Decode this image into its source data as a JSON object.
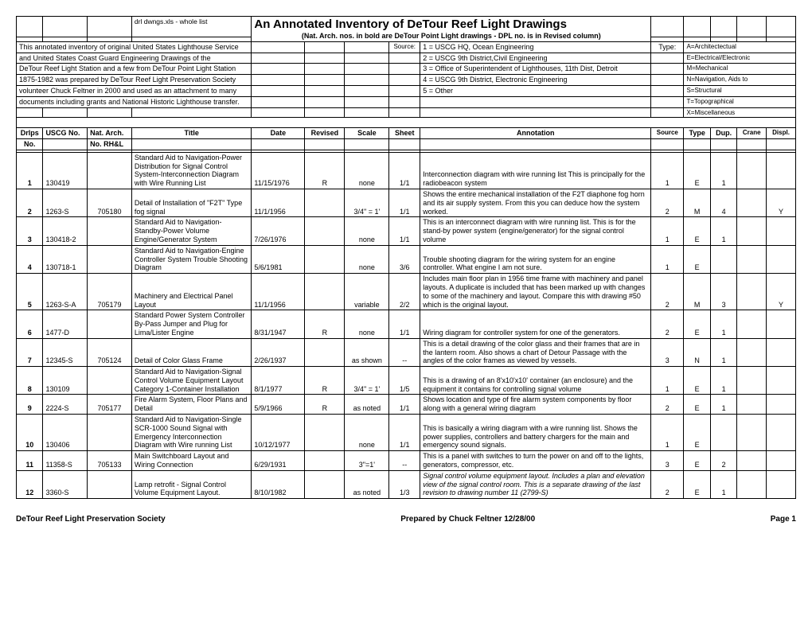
{
  "header": {
    "file_label": "drl dwngs.xls - whole list",
    "main_title": "An Annotated Inventory of DeTour Reef Light Drawings",
    "sub_title": "(Nat. Arch. nos. in bold are DeTour Point Light drawings - DPL no. is in Revised column)",
    "intro_l1": "This annotated  inventory of original United States Lighthouse Service",
    "intro_l2": "and United States Coast Guard Engineering Drawings of the",
    "intro_l3": " DeTour Reef Light Station  and a few from DeTour Point Light Station",
    "intro_l4": "1875-1982 was prepared by DeTour Reef Light Preservation Society",
    "intro_l5": "volunteer Chuck Feltner in 2000 and used as an attachment to many",
    "intro_l6": "documents including grants and National Historic Lighthouse transfer.",
    "source_label": "Source:",
    "source_1": "1 = USCG HQ, Ocean Engineering",
    "source_2": "2 = USCG 9th District,Civil Engineering",
    "source_3": "3 = Office of Superintendent of Lighthouses, 11th Dist, Detroit",
    "source_4": "4 = USCG 9th District, Electronic Engineering",
    "source_5": "5 = Other",
    "type_label": "Type:",
    "type_a": "A=Architectectual",
    "type_e": "E=Electrical/Electronic",
    "type_m": "M=Mechanical",
    "type_n": "N=Navigation, Aids to",
    "type_s": "S=Structural",
    "type_t": "T=Topographical",
    "type_x": "X=Miscellaneous"
  },
  "columns": {
    "c0": "Drlps No.",
    "c1": "USCG No.",
    "c2": "Nat. Arch.",
    "c2b": "No. RH&L",
    "c3": "Title",
    "c4": "Date",
    "c5": "Revised",
    "c6": "Scale",
    "c7": "Sheet",
    "c8": "Annotation",
    "c9": "Source",
    "c10": "Type",
    "c11": "Dup.",
    "c12": "Crane",
    "c13": "Displ."
  },
  "rows": [
    {
      "no": "1",
      "uscg": "130419",
      "nat": "",
      "title": "Standard Aid to Navigation-Power Distribution for Signal Control System-Interconnection Diagram with Wire Running List",
      "date": "11/15/1976",
      "rev": "R",
      "scale": "none",
      "sheet": "1/1",
      "anno": "Interconnection diagram with wire running list  This is principally for the radiobeacon system",
      "src": "1",
      "type": "E",
      "dup": "1",
      "crane": "",
      "displ": ""
    },
    {
      "no": "2",
      "uscg": "1263-S",
      "nat": "705180",
      "title": "Detail of Installation of \"F2T\" Type fog signal",
      "date": "11/1/1956",
      "rev": "",
      "scale": "3/4\" = 1'",
      "sheet": "1/1",
      "anno": "Shows the entire mechanical installation of the F2T diaphone fog horn and its air supply system.  From this you can deduce how the system worked.",
      "src": "2",
      "type": "M",
      "dup": "4",
      "crane": "",
      "displ": "Y"
    },
    {
      "no": "3",
      "uscg": "130418-2",
      "nat": "",
      "title": "Standard Aid to Navigation-Standby-Power Volume Engine/Generator System",
      "date": "7/26/1976",
      "rev": "",
      "scale": "none",
      "sheet": "1/1",
      "anno": "This is an interconnect diagram with wire running list.  This is for the stand-by power system (engine/generator) for the signal control volume",
      "src": "1",
      "type": "E",
      "dup": "1",
      "crane": "",
      "displ": ""
    },
    {
      "no": "4",
      "uscg": "130718-1",
      "nat": "",
      "title": "Standard Aid to Navigation-Engine Controller System Trouble Shooting Diagram",
      "date": "5/6/1981",
      "rev": "",
      "scale": "none",
      "sheet": "3/6",
      "anno": "Trouble shooting diagram for the wiring system for an engine controller.  What engine I am not sure.",
      "src": "1",
      "type": "E",
      "dup": "",
      "crane": "",
      "displ": ""
    },
    {
      "no": "5",
      "uscg": "1263-S-A",
      "nat": "705179",
      "title": "Machinery and Electrical Panel Layout",
      "date": "11/1/1956",
      "rev": "",
      "scale": "variable",
      "sheet": "2/2",
      "anno": "Includes main floor plan in 1956 time frame with machinery and panel layouts.  A duplicate is included that has been marked up with changes to some of the machinery and layout.  Compare this with drawing #50 which is the original layout.",
      "src": "2",
      "type": "M",
      "dup": "3",
      "crane": "",
      "displ": "Y"
    },
    {
      "no": "6",
      "uscg": "1477-D",
      "nat": "",
      "title": "Standard Power System Controller By-Pass Jumper and Plug for Lima/Lister Engine",
      "date": "8/31/1947",
      "rev": "R",
      "scale": "none",
      "sheet": "1/1",
      "anno": "Wiring diagram for controller system for one of the generators.",
      "src": "2",
      "type": "E",
      "dup": "1",
      "crane": "",
      "displ": ""
    },
    {
      "no": "7",
      "uscg": "12345-S",
      "nat": "705124",
      "title": "Detail of Color Glass Frame",
      "date": "2/26/1937",
      "rev": "",
      "scale": "as shown",
      "sheet": "--",
      "anno": "This is a detail drawing of the color glass and their frames that are in the lantern room.  Also shows a chart of Detour Passage with the angles of the color frames as viewed by vessels.",
      "src": "3",
      "type": "N",
      "dup": "1",
      "crane": "",
      "displ": ""
    },
    {
      "no": "8",
      "uscg": "130109",
      "nat": "",
      "title": "Standard Aid to Navigation-Signal Control Volume Equipment Layout Category 1-Container Installation",
      "date": "8/1/1977",
      "rev": "R",
      "scale": "3/4\" = 1'",
      "sheet": "1/5",
      "anno": "This is a drawing of an 8'x10'x10' container (an enclosure)  and the equipment it contains for controlling signal volume",
      "src": "1",
      "type": "E",
      "dup": "1",
      "crane": "",
      "displ": ""
    },
    {
      "no": "9",
      "uscg": "2224-S",
      "nat": "705177",
      "title": "Fire Alarm System, Floor Plans and Detail",
      "date": "5/9/1966",
      "rev": "R",
      "scale": "as noted",
      "sheet": "1/1",
      "anno": "Shows location and type of fire alarm system components by floor along with a general wiring diagram",
      "src": "2",
      "type": "E",
      "dup": "1",
      "crane": "",
      "displ": ""
    },
    {
      "no": "10",
      "uscg": "130406",
      "nat": "",
      "title": "Standard Aid to Navigation-Single SCR-1000 Sound Signal with Emergency Interconnection Diagram with Wire running List",
      "date": "10/12/1977",
      "rev": "",
      "scale": "none",
      "sheet": "1/1",
      "anno": "This is basically a wiring diagram with a wire running list.  Shows the power supplies, controllers and battery chargers for the main and emergency sound signals.",
      "src": "1",
      "type": "E",
      "dup": "",
      "crane": "",
      "displ": ""
    },
    {
      "no": "11",
      "uscg": "11358-S",
      "nat": "705133",
      "title": "Main Switchboard Layout and Wiring Connection",
      "date": "6/29/1931",
      "rev": "",
      "scale": "3\"=1'",
      "sheet": "--",
      "anno": "This is  a panel with switches to turn the power on and off to the lights, generators, compressor, etc.",
      "src": "3",
      "type": "E",
      "dup": "2",
      "crane": "",
      "displ": ""
    },
    {
      "no": "12",
      "uscg": "3360-S",
      "nat": "",
      "title": "Lamp retrofit - Signal Control Volume Equipment Layout.",
      "date": "8/10/1982",
      "rev": "",
      "scale": "as noted",
      "sheet": "1/3",
      "anno": "Signal control volume equipment layout.  Includes a plan and elevation view of the signal control room.  This is  a separate drawing of the last revision to drawing number 11 (2799-S)",
      "src": "2",
      "type": "E",
      "dup": "1",
      "crane": "",
      "displ": "",
      "anno_italic": true
    }
  ],
  "footer": {
    "left": "DeTour Reef Light Preservation Society",
    "center": "Prepared by Chuck Feltner 12/28/00",
    "right": "Page 1"
  }
}
